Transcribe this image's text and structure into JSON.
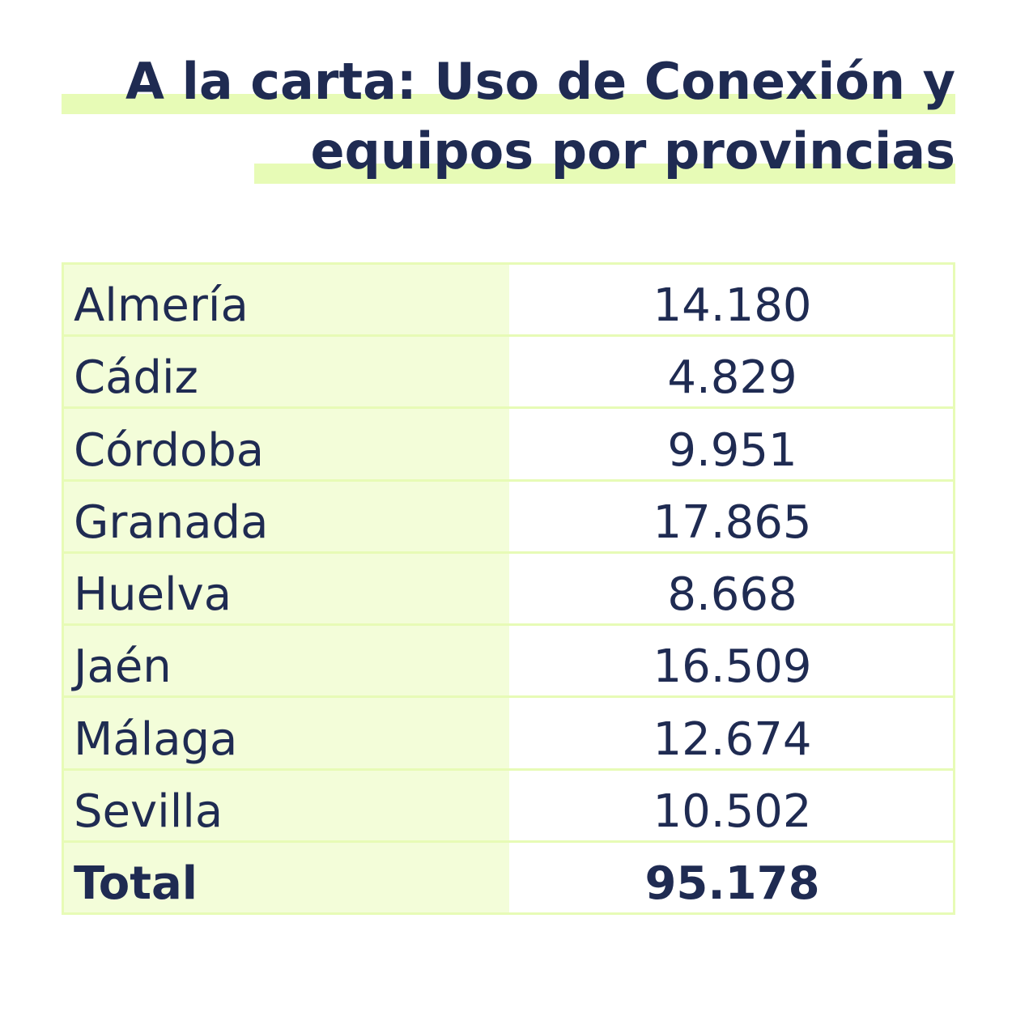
{
  "title": {
    "line1": "A la carta: Uso de Conexión y",
    "line2": "equipos por provincias"
  },
  "colors": {
    "text": "#1f2b52",
    "highlight": "#e7fbb6",
    "label_column": "#f3fdd9"
  },
  "chart_data": {
    "type": "table",
    "title": "A la carta: Uso de Conexión y equipos por provincias",
    "rows": [
      {
        "name": "Almería",
        "value": "14.180"
      },
      {
        "name": "Cádiz",
        "value": "4.829"
      },
      {
        "name": "Córdoba",
        "value": "9.951"
      },
      {
        "name": "Granada",
        "value": "17.865"
      },
      {
        "name": "Huelva",
        "value": "8.668"
      },
      {
        "name": "Jaén",
        "value": "16.509"
      },
      {
        "name": "Málaga",
        "value": "12.674"
      },
      {
        "name": "Sevilla",
        "value": "10.502"
      }
    ],
    "total": {
      "name": "Total",
      "value": "95.178"
    }
  }
}
